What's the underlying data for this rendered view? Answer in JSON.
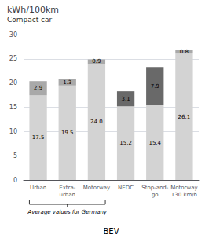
{
  "chart_data": {
    "type": "bar",
    "stacked": true,
    "data_labels": true,
    "grid": true,
    "title": "kWh/100km",
    "subtitle": "Compact car",
    "xlabel": "BEV",
    "categories": [
      "Urban",
      "Extra-\nurban",
      "Motorway",
      "NEDC",
      "Stop-and-\ngo",
      "Motorway\n130 km/h"
    ],
    "series": [
      {
        "color": "#d3d3d3",
        "values": [
          17.5,
          19.5,
          24.0,
          15.2,
          15.4,
          26.1
        ],
        "value_labels": [
          "17.5",
          "19.5",
          "24.0",
          "15.2",
          "15.4",
          "26.1"
        ]
      },
      {
        "colors": [
          "#a9a9a9",
          "#a9a9a9",
          "#a9a9a9",
          "#696969",
          "#696969",
          "#a9a9a9"
        ],
        "values": [
          2.9,
          1.3,
          0.9,
          3.1,
          7.9,
          0.8
        ]
      }
    ],
    "annotations": [
      {
        "text": "Average values for Germany",
        "x": [
          "Urban",
          "Motorway"
        ]
      }
    ],
    "ylim": [
      0,
      30
    ],
    "yticks": [
      0,
      5,
      10,
      15,
      20,
      25,
      30
    ]
  }
}
